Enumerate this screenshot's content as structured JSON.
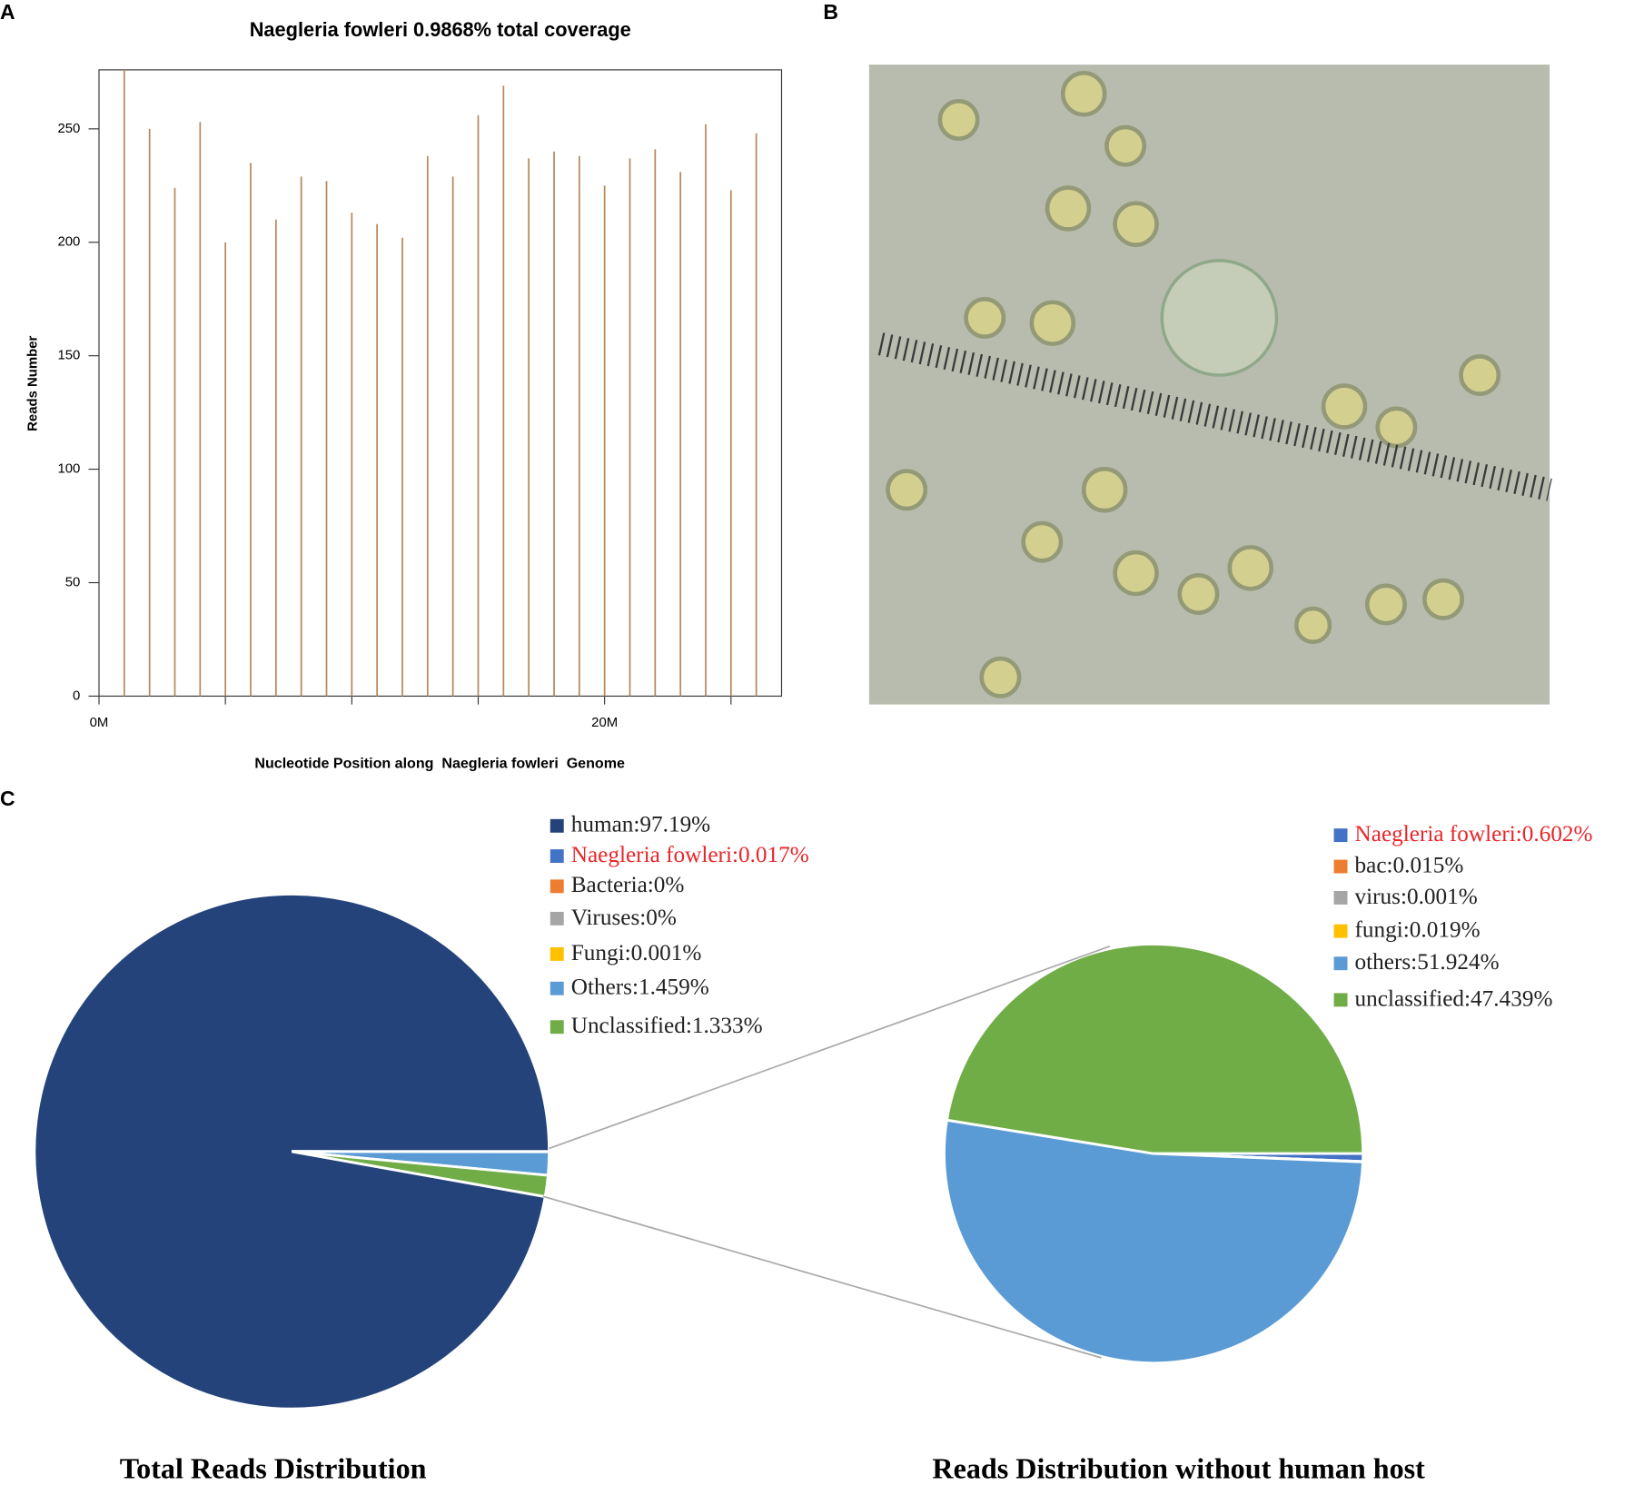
{
  "panel_labels": [
    "A",
    "B",
    "C"
  ],
  "chart_data": [
    {
      "type": "bar",
      "title": "Naegleria fowleri 0.9868% total coverage",
      "x_label": "Nucleotide Position along  Naegleria fowleri  Genome",
      "y_label": "Reads Number",
      "x": [
        1000000,
        2000000,
        3000000,
        4000000,
        5000000,
        6000000,
        7000000,
        8000000,
        9000000,
        10000000,
        11000000,
        12000000,
        13000000,
        14000000,
        15000000,
        16000000,
        17000000,
        18000000,
        19000000,
        20000000,
        21000000,
        22000000,
        23000000,
        24000000,
        25000000,
        26000000
      ],
      "values": [
        276,
        250,
        224,
        253,
        200,
        235,
        210,
        229,
        227,
        213,
        208,
        202,
        238,
        229,
        256,
        269,
        237,
        240,
        238,
        225,
        237,
        241,
        231,
        252,
        223,
        248
      ],
      "color": "#b8875a",
      "xlim": [
        0,
        27000000
      ],
      "ylim": [
        0,
        276
      ],
      "xticks": [
        {
          "value": 0,
          "label": "0M"
        },
        {
          "value": 20000000,
          "label": "20M"
        }
      ],
      "xminor_ticks": [
        5000000,
        10000000,
        15000000,
        25000000
      ],
      "yticks": [
        0,
        50,
        100,
        150,
        200,
        250
      ]
    },
    {
      "type": "pie",
      "title": "Total Reads Distribution",
      "categories": [
        "human:97.19%",
        "Naegleria fowleri:0.017%",
        "Bacteria:0%",
        "Viruses:0%",
        "Fungi:0.001%",
        "Others:1.459%",
        "Unclassified:1.333%"
      ],
      "values": [
        97.19,
        0.017,
        0,
        0,
        0.001,
        1.459,
        1.333
      ],
      "colors": [
        "#24437a",
        "#4472c4",
        "#ed7d31",
        "#a5a5a5",
        "#ffc000",
        "#5b9bd5",
        "#70ad47"
      ],
      "label_colors": [
        "#222222",
        "#e8262a",
        "#222222",
        "#222222",
        "#222222",
        "#222222",
        "#222222"
      ]
    },
    {
      "type": "pie",
      "title": "Reads Distribution without human host",
      "categories": [
        "Naegleria fowleri:0.602%",
        "bac:0.015%",
        "virus:0.001%",
        "fungi:0.019%",
        "others:51.924%",
        "unclassified:47.439%"
      ],
      "values": [
        0.602,
        0.015,
        0.001,
        0.019,
        51.924,
        47.439
      ],
      "colors": [
        "#4472c4",
        "#ed7d31",
        "#a5a5a5",
        "#ffc000",
        "#5b9bd5",
        "#70ad47"
      ],
      "label_colors": [
        "#e8262a",
        "#222222",
        "#222222",
        "#222222",
        "#222222",
        "#222222"
      ]
    }
  ]
}
